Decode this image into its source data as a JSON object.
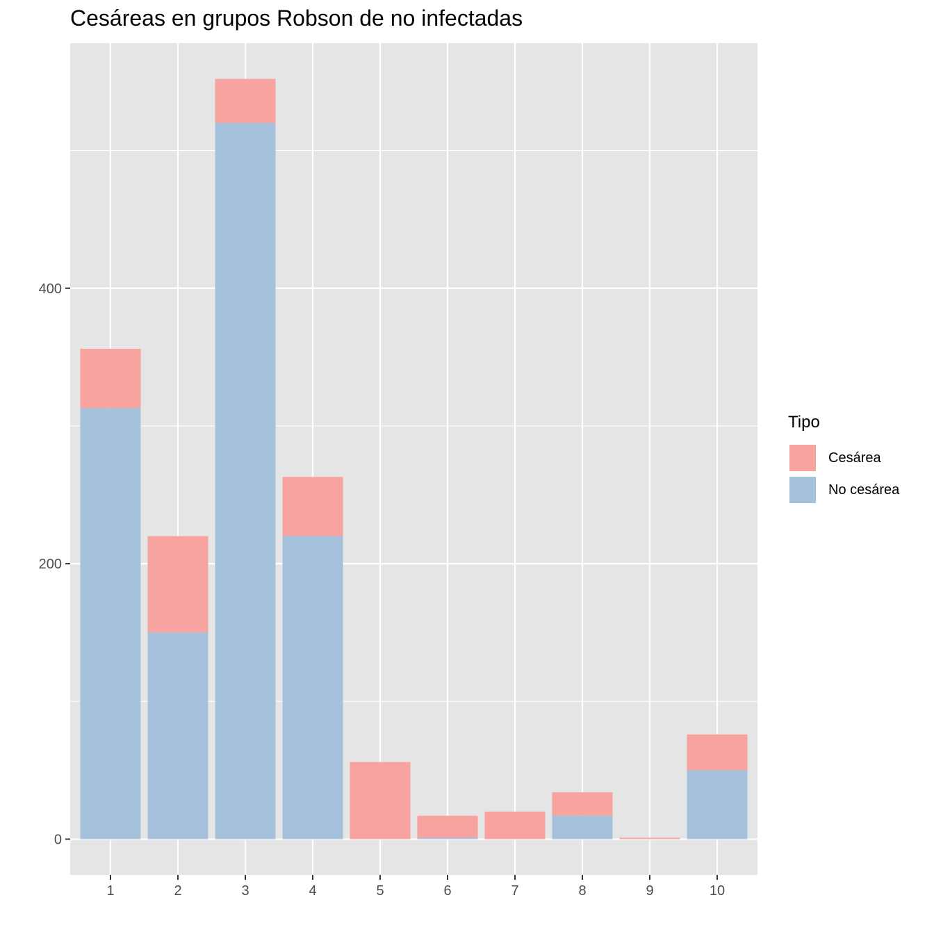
{
  "chart_data": {
    "type": "bar",
    "stacked": true,
    "title": "Cesáreas en grupos Robson de no infectadas",
    "xlabel": "",
    "ylabel": "",
    "categories": [
      "1",
      "2",
      "3",
      "4",
      "5",
      "6",
      "7",
      "8",
      "9",
      "10"
    ],
    "series": [
      {
        "name": "No cesárea",
        "color": "#a6c1dc",
        "values": [
          313,
          150,
          520,
          220,
          0,
          1,
          0,
          17,
          0,
          50
        ]
      },
      {
        "name": "Cesárea",
        "color": "#f7a4a0",
        "values": [
          43,
          70,
          32,
          43,
          56,
          16,
          20,
          17,
          1,
          26
        ]
      }
    ],
    "stack_order_bottom_to_top": [
      "No cesárea",
      "Cesárea"
    ],
    "y_ticks": [
      0,
      200,
      400
    ],
    "ylim": [
      -26,
      578
    ],
    "grid": true,
    "legend": {
      "title": "Tipo",
      "position": "right",
      "entries": [
        "Cesárea",
        "No cesárea"
      ]
    }
  }
}
